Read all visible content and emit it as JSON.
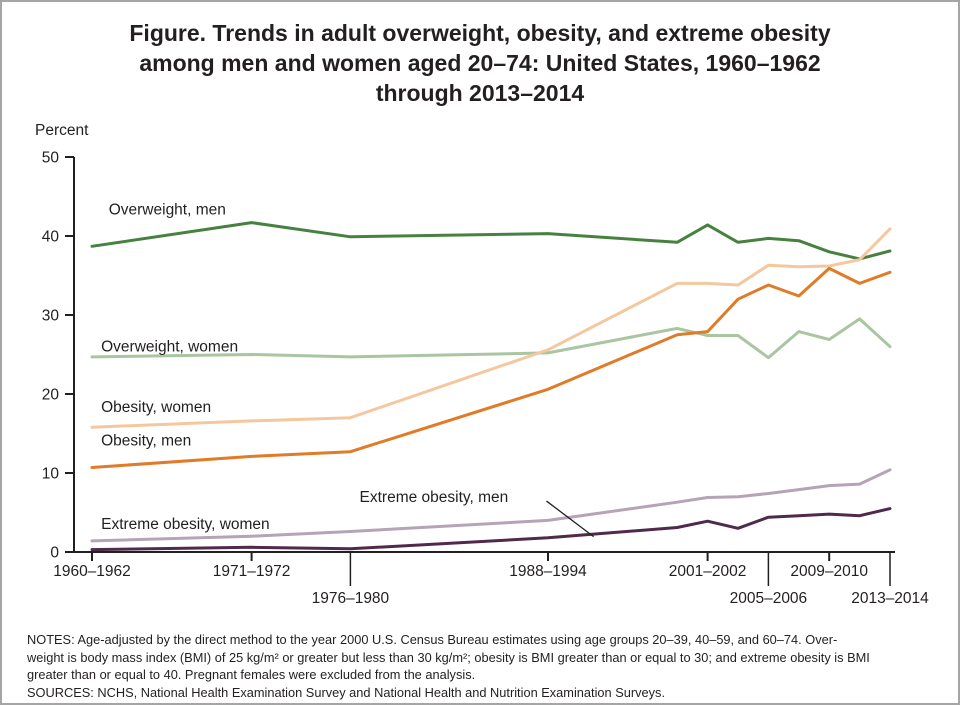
{
  "title": {
    "lines": [
      "Figure. Trends in adult overweight, obesity, and extreme obesity",
      "among men and women aged 20–74: United States, 1960–1962",
      "through 2013–2014"
    ]
  },
  "notes": {
    "lines": [
      "NOTES: Age-adjusted by the direct method to the year 2000 U.S. Census Bureau estimates using age groups 20–39, 40–59, and 60–74. Over-",
      "weight is body mass index (BMI) of 25 kg/m² or greater but less than 30 kg/m²; obesity is BMI greater than or equal to 30; and extreme obesity is BMI",
      "greater than or equal to 40. Pregnant females were excluded from the analysis.",
      "SOURCES: NCHS, National Health Examination Survey and National Health and Nutrition Examination Surveys."
    ]
  },
  "chart_data": {
    "type": "line",
    "ylabel": "Percent",
    "ylim": [
      0,
      50
    ],
    "yticks": [
      0,
      10,
      20,
      30,
      40,
      50
    ],
    "x_domain": [
      1961,
      2013.5
    ],
    "x_years": [
      1961,
      1971.5,
      1978,
      1991,
      1999.5,
      2001.5,
      2003.5,
      2005.5,
      2007.5,
      2009.5,
      2011.5,
      2013.5
    ],
    "grid": "off",
    "legend": "inline-labels",
    "axis_color": "#231f20",
    "xticks": [
      {
        "label": "1960–1962",
        "year": 1961,
        "row": 1
      },
      {
        "label": "1971–1972",
        "year": 1971.5,
        "row": 1
      },
      {
        "label": "1976–1980",
        "year": 1978,
        "row": 2
      },
      {
        "label": "1988–1994",
        "year": 1991,
        "row": 1
      },
      {
        "label": "2001–2002",
        "year": 2001.5,
        "row": 1
      },
      {
        "label": "2005–2006",
        "year": 2005.5,
        "row": 2
      },
      {
        "label": "2009–2010",
        "year": 2009.5,
        "row": 1
      },
      {
        "label": "2013–2014",
        "year": 2013.5,
        "row": 2
      }
    ],
    "series": [
      {
        "id": "overweight-men",
        "name": "Overweight, men",
        "color": "#47813f",
        "values": [
          38.7,
          41.7,
          39.9,
          40.3,
          39.2,
          41.4,
          39.2,
          39.7,
          39.4,
          38.0,
          37.1,
          38.1
        ]
      },
      {
        "id": "overweight-women",
        "name": "Overweight, women",
        "color": "#a9c6a1",
        "values": [
          24.7,
          25.0,
          24.7,
          25.2,
          28.3,
          27.4,
          27.4,
          24.6,
          27.9,
          26.9,
          29.5,
          26.0
        ]
      },
      {
        "id": "obesity-women",
        "name": "Obesity, women",
        "color": "#f5c79e",
        "values": [
          15.8,
          16.6,
          17.0,
          25.6,
          34.0,
          34.0,
          33.8,
          36.3,
          36.1,
          36.2,
          37.0,
          40.9
        ]
      },
      {
        "id": "obesity-men",
        "name": "Obesity, men",
        "color": "#e07b28",
        "values": [
          10.7,
          12.1,
          12.7,
          20.6,
          27.5,
          27.9,
          32.0,
          33.8,
          32.4,
          35.9,
          34.0,
          35.4
        ]
      },
      {
        "id": "extreme-obesity-women",
        "name": "Extreme obesity, women",
        "color": "#b5a3b6",
        "values": [
          1.4,
          2.0,
          2.6,
          4.0,
          6.3,
          6.9,
          7.0,
          7.4,
          7.9,
          8.4,
          8.6,
          10.4
        ]
      },
      {
        "id": "extreme-obesity-men",
        "name": "Extreme obesity, men",
        "color": "#4f2a4c",
        "values": [
          0.3,
          0.6,
          0.4,
          1.8,
          3.1,
          3.9,
          3.0,
          4.4,
          4.6,
          4.8,
          4.6,
          5.5
        ]
      }
    ],
    "annotations": [
      {
        "id": "overweight-men",
        "text": "Overweight, men",
        "year": 1962.1,
        "value": 42.7
      },
      {
        "id": "overweight-women",
        "text": "Overweight, women",
        "year": 1961.6,
        "value": 25.4
      },
      {
        "id": "obesity-women",
        "text": "Obesity, women",
        "year": 1961.6,
        "value": 17.7
      },
      {
        "id": "obesity-men",
        "text": "Obesity, men",
        "year": 1961.6,
        "value": 13.5
      },
      {
        "id": "extreme-obesity-men",
        "text": "Extreme obesity, men",
        "year": 1978.6,
        "value": 6.3
      },
      {
        "id": "extreme-obesity-women",
        "text": "Extreme obesity, women",
        "year": 1961.6,
        "value": 2.9
      }
    ],
    "leader_lines": [
      {
        "x1": 1990.9,
        "y1": 6.45,
        "x2": 1994.0,
        "y2": 1.95
      }
    ]
  }
}
